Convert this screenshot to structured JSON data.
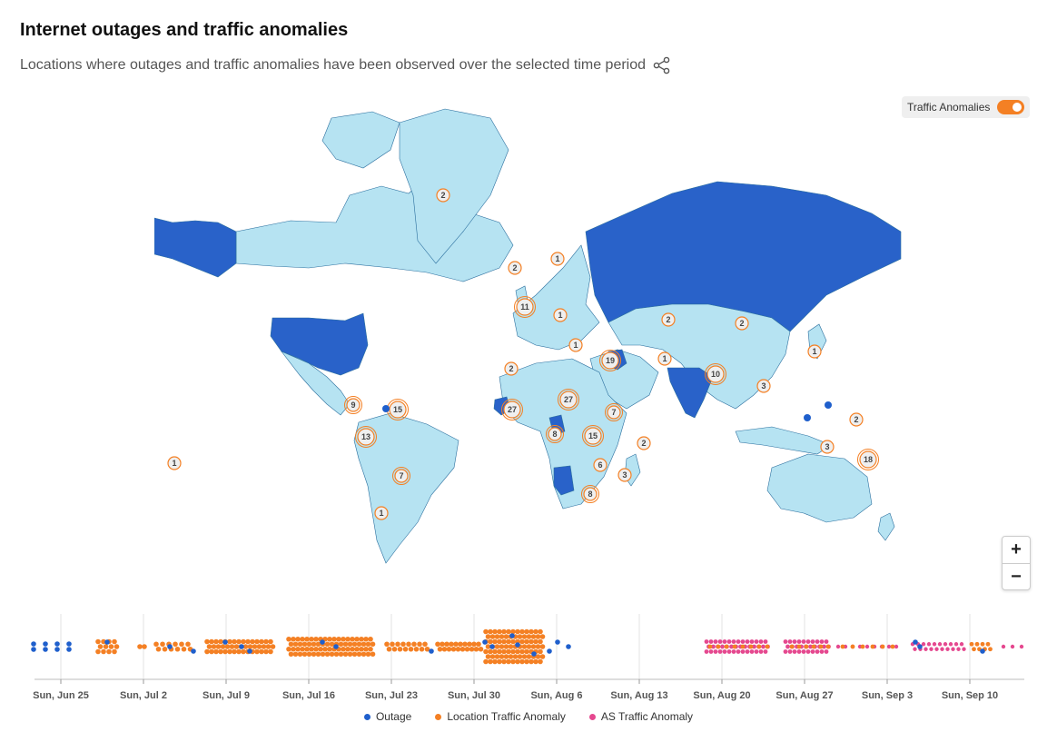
{
  "header": {
    "title": "Internet outages and traffic anomalies",
    "subtitle": "Locations where outages and traffic anomalies have been observed over the selected time period"
  },
  "toggle": {
    "label": "Traffic Anomalies",
    "state": "on"
  },
  "zoom": {
    "in_label": "+",
    "out_label": "−"
  },
  "colors": {
    "outage": "#1f5fcc",
    "location_anomaly": "#f48024",
    "as_anomaly": "#e5488f",
    "highlight_country": "#2962c9",
    "other_country": "#b6e3f2",
    "badge_fill": "#efefef",
    "badge_stroke": "#f48024"
  },
  "map": {
    "highlighted_countries": [
      "Russia",
      "United States",
      "India",
      "Iraq",
      "Sierra Leone",
      "Liberia",
      "Cameroon",
      "Namibia"
    ],
    "markers": [
      {
        "count": "2",
        "region": "Greenland"
      },
      {
        "count": "2",
        "region": "North Atlantic"
      },
      {
        "count": "1",
        "region": "Scandinavia"
      },
      {
        "count": "11",
        "region": "United Kingdom"
      },
      {
        "count": "1",
        "region": "Central Europe"
      },
      {
        "count": "2",
        "region": "Kazakhstan"
      },
      {
        "count": "2",
        "region": "Mongolia"
      },
      {
        "count": "1",
        "region": "Mediterranean"
      },
      {
        "count": "19",
        "region": "Middle East"
      },
      {
        "count": "1",
        "region": "Iran"
      },
      {
        "count": "10",
        "region": "Bangladesh"
      },
      {
        "count": "3",
        "region": "Southeast Asia"
      },
      {
        "count": "1",
        "region": "Japan"
      },
      {
        "count": "2",
        "region": "Western Sahara"
      },
      {
        "count": "27",
        "region": "West Africa"
      },
      {
        "count": "27",
        "region": "Sudan"
      },
      {
        "count": "7",
        "region": "Ethiopia"
      },
      {
        "count": "8",
        "region": "Central Africa"
      },
      {
        "count": "15",
        "region": "East Africa"
      },
      {
        "count": "2",
        "region": "Seychelles"
      },
      {
        "count": "6",
        "region": "Mozambique"
      },
      {
        "count": "3",
        "region": "Madagascar"
      },
      {
        "count": "8",
        "region": "Southern Africa"
      },
      {
        "count": "9",
        "region": "Central America"
      },
      {
        "count": "15",
        "region": "Colombia"
      },
      {
        "count": "13",
        "region": "Peru"
      },
      {
        "count": "7",
        "region": "Paraguay"
      },
      {
        "count": "1",
        "region": "Chile"
      },
      {
        "count": "1",
        "region": "Pacific"
      },
      {
        "count": "2",
        "region": "Micronesia"
      },
      {
        "count": "3",
        "region": "Papua New Guinea"
      },
      {
        "count": "18",
        "region": "Solomon Islands"
      }
    ]
  },
  "timeline": {
    "ticks": [
      "Sun, Jun 25",
      "Sun, Jul 2",
      "Sun, Jul 9",
      "Sun, Jul 16",
      "Sun, Jul 23",
      "Sun, Jul 30",
      "Sun, Aug 6",
      "Sun, Aug 13",
      "Sun, Aug 20",
      "Sun, Aug 27",
      "Sun, Sep 3",
      "Sun, Sep 10"
    ]
  },
  "legend": {
    "items": [
      {
        "label": "Outage"
      },
      {
        "label": "Location Traffic Anomaly"
      },
      {
        "label": "AS Traffic Anomaly"
      }
    ]
  }
}
